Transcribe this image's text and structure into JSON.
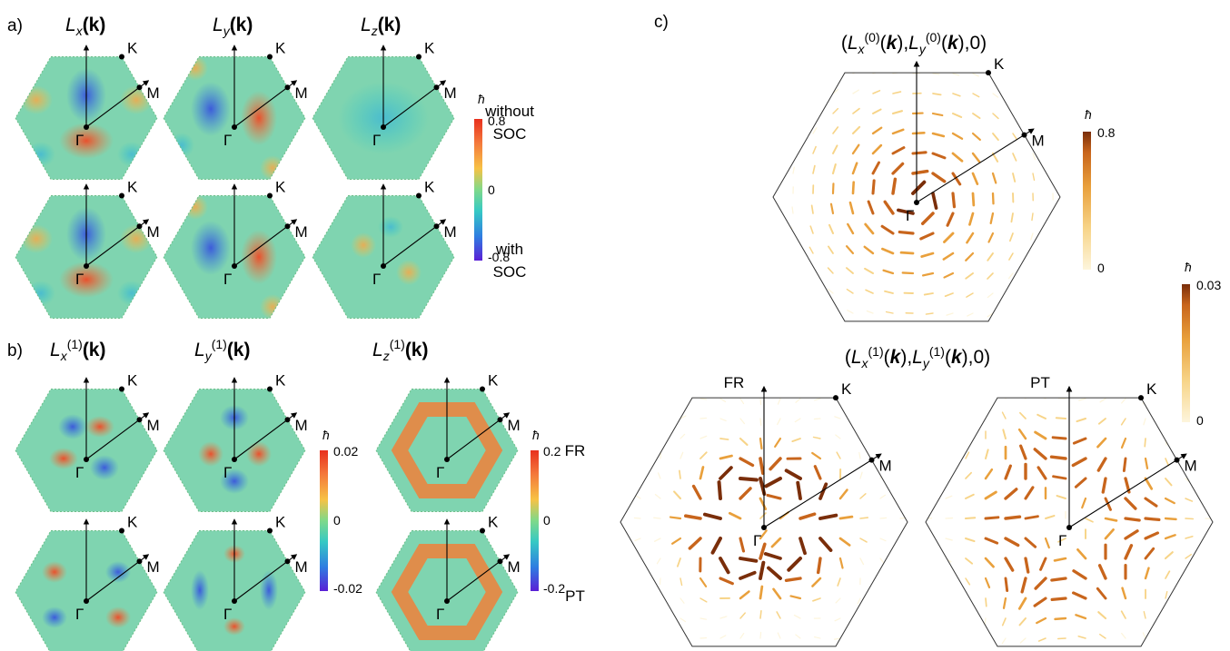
{
  "panel_labels": {
    "a": "a)",
    "b": "b)",
    "c": "c)"
  },
  "panel_a": {
    "titles": [
      "L",
      "L",
      "L"
    ],
    "subs": [
      "x",
      "y",
      "z"
    ],
    "arg": "(k)",
    "row_labels": [
      {
        "line1": "without",
        "line2": "SOC"
      },
      {
        "line1": "with",
        "line2": "SOC"
      }
    ],
    "colorbar": {
      "unit": "ħ",
      "max": "0.8",
      "mid": "0",
      "min": "-0.8"
    }
  },
  "panel_b": {
    "titles": [
      "L",
      "L",
      "L"
    ],
    "subs": [
      "x",
      "y",
      "z"
    ],
    "sup": "(1)",
    "arg": "(k)",
    "row_labels": [
      "FR",
      "PT"
    ],
    "colorbar_xy": {
      "unit": "ħ",
      "max": "0.02",
      "mid": "0",
      "min": "-0.02"
    },
    "colorbar_z": {
      "unit": "ħ",
      "max": "0.2",
      "mid": "0",
      "min": "-0.2"
    }
  },
  "panel_c": {
    "title_top": "(Lx(0)(k),Ly(0)(k),0)",
    "title_bottom": "(Lx(1)(k),Ly(1)(k),0)",
    "sub_labels": [
      "FR",
      "PT"
    ],
    "colorbar_top": {
      "unit": "ħ",
      "max": "0.8",
      "min": "0"
    },
    "colorbar_bottom": {
      "unit": "ħ",
      "max": "0.03",
      "min": "0"
    }
  },
  "points": {
    "K": "K",
    "M": "M",
    "Gamma": "Γ"
  },
  "colors": {
    "jet": [
      "#5a1fd6",
      "#2f7de1",
      "#36c9c4",
      "#7fd98a",
      "#f7c245",
      "#f4793c",
      "#e8301e"
    ],
    "copper": [
      "#fdf5dc",
      "#f7d488",
      "#e9a03c",
      "#c8651c",
      "#7a2e0a"
    ],
    "hex_base": "#7fd4b0"
  }
}
